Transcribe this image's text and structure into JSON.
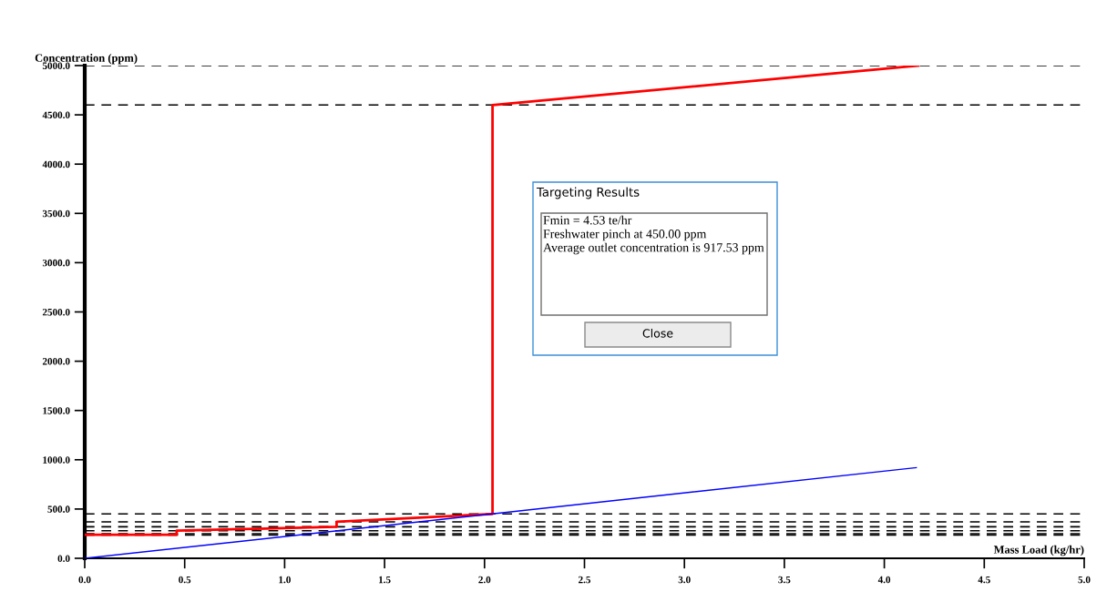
{
  "chart_data": {
    "type": "line",
    "xlabel": "Mass Load (kg/hr)",
    "ylabel": "Concentration (ppm)",
    "series": [
      {
        "color": "#ff0000",
        "x": [
          0,
          0.46,
          0.46,
          0.86,
          1.26,
          1.26,
          2.04,
          2.04,
          4.17
        ],
        "values": [
          240,
          240,
          280,
          300,
          320,
          370,
          450,
          4600,
          5000
        ]
      },
      {
        "color": "#0000ff",
        "x": [
          0,
          4.16
        ],
        "values": [
          0,
          920
        ]
      }
    ],
    "ref_lines": [
      {
        "axis": "y",
        "value": 5000,
        "color": "#000000",
        "line_style": "dashed"
      },
      {
        "axis": "y",
        "value": 4600,
        "color": "#000000",
        "line_style": "dashed"
      },
      {
        "axis": "y",
        "value": 450,
        "color": "#000000",
        "line_style": "dashed"
      },
      {
        "axis": "y",
        "value": 370,
        "color": "#000000",
        "line_style": "dashed"
      },
      {
        "axis": "y",
        "value": 320,
        "color": "#000000",
        "line_style": "dashed"
      },
      {
        "axis": "y",
        "value": 280,
        "color": "#000000",
        "line_style": "dashed"
      },
      {
        "axis": "y",
        "value": 250,
        "color": "#000000",
        "line_style": "dashed"
      },
      {
        "axis": "y",
        "value": 235,
        "color": "#000000",
        "line_style": "dashed"
      }
    ],
    "xlim": [
      0,
      5
    ],
    "ylim": [
      0,
      5000
    ],
    "xticks": [
      {
        "value": 0,
        "label": "0.0"
      },
      {
        "value": 0.5,
        "label": "0.5"
      },
      {
        "value": 1,
        "label": "1.0"
      },
      {
        "value": 1.5,
        "label": "1.5"
      },
      {
        "value": 2,
        "label": "2.0"
      },
      {
        "value": 2.5,
        "label": "2.5"
      },
      {
        "value": 3,
        "label": "3.0"
      },
      {
        "value": 3.5,
        "label": "3.5"
      },
      {
        "value": 4,
        "label": "4.0"
      },
      {
        "value": 4.5,
        "label": "4.5"
      },
      {
        "value": 5,
        "label": "5.0"
      }
    ],
    "yticks": [
      {
        "value": 0,
        "label": "0.0"
      },
      {
        "value": 500,
        "label": "500.0"
      },
      {
        "value": 1000,
        "label": "1000.0"
      },
      {
        "value": 1500,
        "label": "1500.0"
      },
      {
        "value": 2000,
        "label": "2000.0"
      },
      {
        "value": 2500,
        "label": "2500.0"
      },
      {
        "value": 3000,
        "label": "3000.0"
      },
      {
        "value": 3500,
        "label": "3500.0"
      },
      {
        "value": 4000,
        "label": "4000.0"
      },
      {
        "value": 4500,
        "label": "4500.0"
      },
      {
        "value": 5000,
        "label": "5000.0"
      }
    ],
    "grid": false,
    "legend": false,
    "marker": "none",
    "line_style": "solid",
    "annotations": [
      "Targeting Results",
      "Fmin = 4.53 te/hr",
      "Freshwater pinch at 450.00 ppm",
      "Average outlet concentration is 917.53 ppm",
      "Close"
    ]
  }
}
